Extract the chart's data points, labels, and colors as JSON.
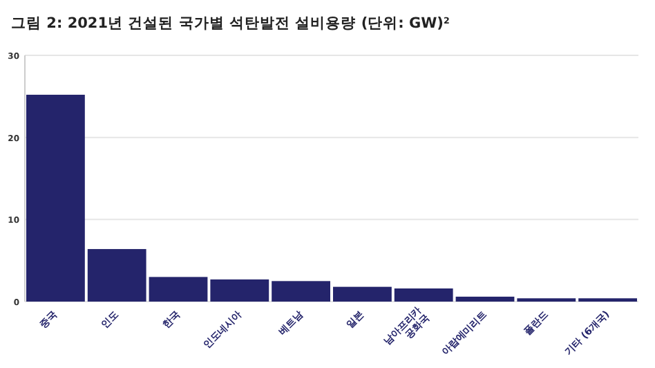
{
  "chart_data": {
    "type": "bar",
    "title": "그림 2: 2021년 건설된 국가별 석탄발전 설비용량 (단위: GW)$^{2}$",
    "categories": [
      "중국",
      "인도",
      "한국",
      "인도네시아",
      "베트남",
      "일본",
      "남아프리카\n공화국",
      "아랍에미리트",
      "폴란드",
      "기타 (6개국)"
    ],
    "values": [
      25.2,
      6.4,
      3.0,
      2.7,
      2.5,
      1.8,
      1.6,
      0.6,
      0.4,
      0.4
    ],
    "color": "#24246b",
    "ylim": [
      0,
      30
    ],
    "yticks": [
      0,
      10,
      20,
      30
    ],
    "grid": "y"
  }
}
